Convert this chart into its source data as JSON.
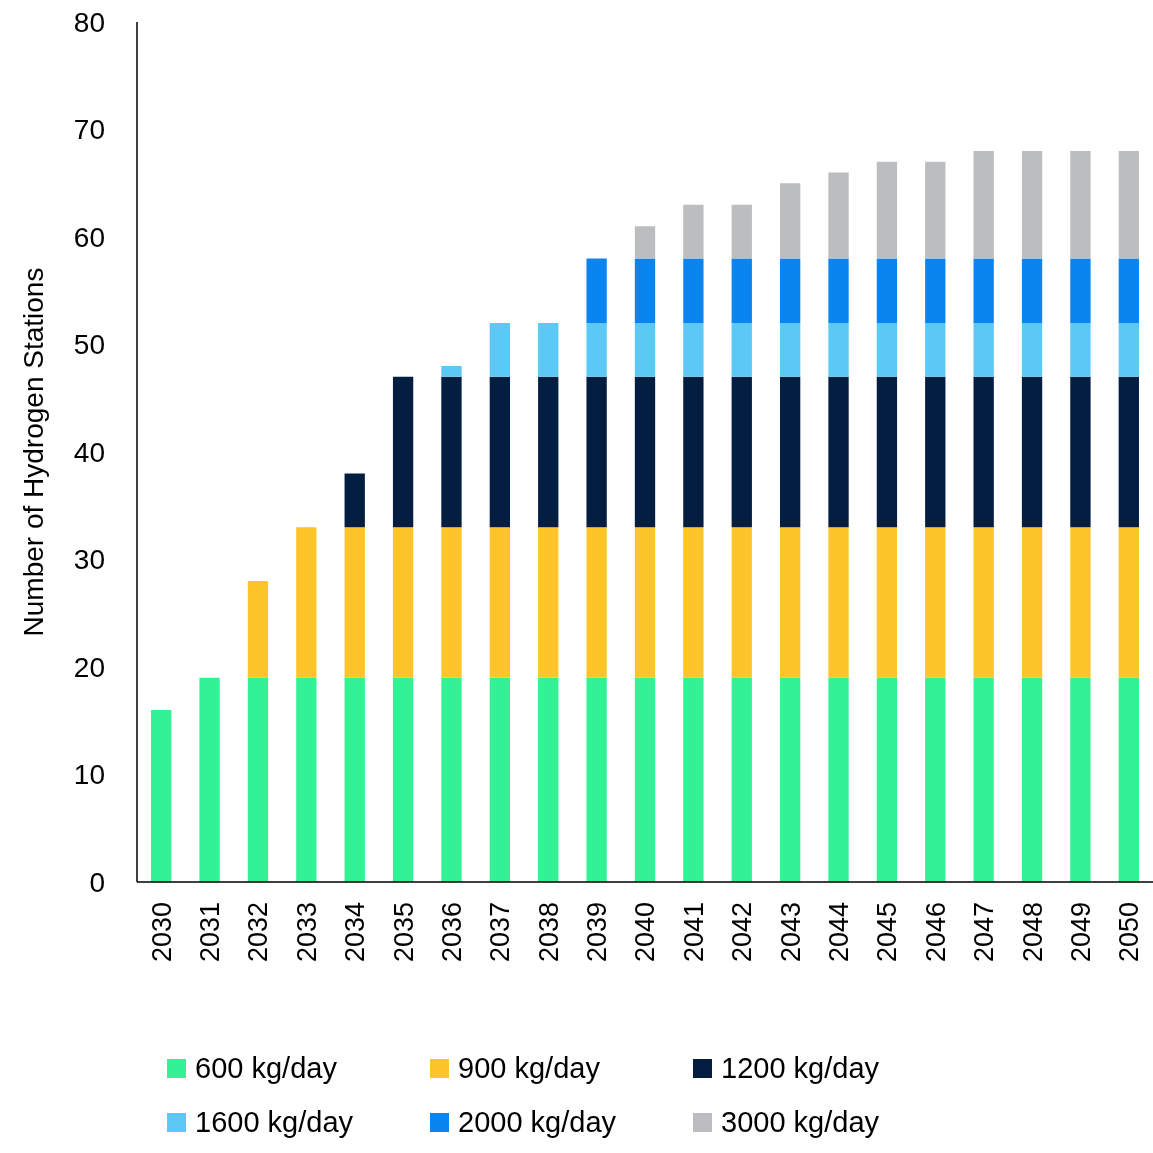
{
  "chart_data": {
    "type": "bar",
    "stacked": true,
    "ylabel": "Number of Hydrogen Stations",
    "categories": [
      "2030",
      "2031",
      "2032",
      "2033",
      "2034",
      "2035",
      "2036",
      "2037",
      "2038",
      "2039",
      "2040",
      "2041",
      "2042",
      "2043",
      "2044",
      "2045",
      "2046",
      "2047",
      "2048",
      "2049",
      "2050"
    ],
    "series": [
      {
        "name": "600 kg/day",
        "color": "#33f295",
        "values": [
          16,
          19,
          19,
          19,
          19,
          19,
          19,
          19,
          19,
          19,
          19,
          19,
          19,
          19,
          19,
          19,
          19,
          19,
          19,
          19,
          19
        ]
      },
      {
        "name": "900 kg/day",
        "color": "#fec52b",
        "values": [
          null,
          null,
          9,
          14,
          14,
          14,
          14,
          14,
          14,
          14,
          14,
          14,
          14,
          14,
          14,
          14,
          14,
          14,
          14,
          14,
          14
        ]
      },
      {
        "name": "1200 kg/day",
        "color": "#041e42",
        "values": [
          null,
          null,
          null,
          null,
          5,
          14,
          14,
          14,
          14,
          14,
          14,
          14,
          14,
          14,
          14,
          14,
          14,
          14,
          14,
          14,
          14
        ]
      },
      {
        "name": "1600 kg/day",
        "color": "#5bc8f5",
        "values": [
          null,
          null,
          null,
          null,
          null,
          null,
          1,
          5,
          5,
          5,
          5,
          5,
          5,
          5,
          5,
          5,
          5,
          5,
          5,
          5,
          5
        ]
      },
      {
        "name": "2000 kg/day",
        "color": "#0a85f0",
        "values": [
          null,
          null,
          null,
          null,
          null,
          null,
          null,
          null,
          null,
          6,
          6,
          6,
          6,
          6,
          6,
          6,
          6,
          6,
          6,
          6,
          6
        ]
      },
      {
        "name": "3000 kg/day",
        "color": "#bcbdbf",
        "values": [
          null,
          null,
          null,
          null,
          null,
          null,
          null,
          null,
          null,
          null,
          3,
          5,
          5,
          7,
          8,
          9,
          9,
          10,
          10,
          10,
          10
        ]
      }
    ],
    "ylim": [
      0,
      80
    ],
    "yticks": [
      0,
      10,
      20,
      30,
      40,
      50,
      60,
      70,
      80
    ],
    "grid": false,
    "legend": "bottom"
  }
}
